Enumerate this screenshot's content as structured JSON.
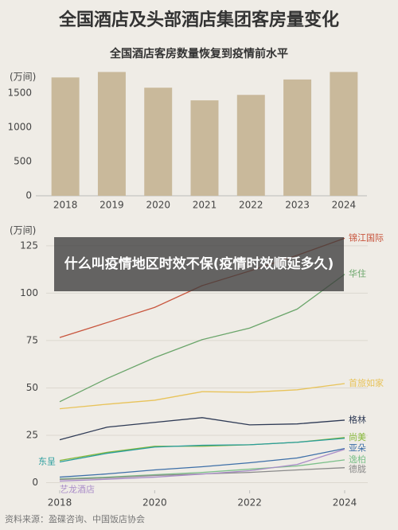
{
  "title": "全国酒店及头部酒店集团客房量变化",
  "overlay_text": "什么叫疫情地区时效不保(疫情时效顺延多久)",
  "source": "资料来源：盈碟咨询、中国饭店协会",
  "chart_data": [
    {
      "type": "bar",
      "title": "全国酒店客房数量恢复到疫情前水平",
      "y_label": "(万间)",
      "categories": [
        "2018",
        "2019",
        "2020",
        "2021",
        "2022",
        "2023",
        "2024"
      ],
      "values": [
        1730,
        1810,
        1580,
        1395,
        1475,
        1700,
        1810
      ],
      "color": "#c9b99b",
      "ylim": [
        0,
        1850
      ],
      "yticks": [
        0,
        500,
        1000,
        1500
      ],
      "grid": false
    },
    {
      "type": "line",
      "y_label": "(万间)",
      "x": [
        2018,
        2019,
        2020,
        2021,
        2022,
        2023,
        2024
      ],
      "xlim": [
        2018,
        2024
      ],
      "xticks": [
        2018,
        2020,
        2022,
        2024
      ],
      "ylim": [
        -4,
        130
      ],
      "yticks": [
        0,
        25,
        50,
        75,
        100,
        125
      ],
      "grid": true,
      "series": [
        {
          "name": "锦江国际",
          "color": "#c8553d",
          "values": [
            76.6,
            84.5,
            92.5,
            104,
            111.7,
            120,
            129
          ]
        },
        {
          "name": "华住",
          "color": "#6aa56a",
          "values": [
            42.7,
            55,
            66,
            75.5,
            81.6,
            91.6,
            110
          ]
        },
        {
          "name": "首旅如家",
          "color": "#e8c35a",
          "values": [
            39,
            41.4,
            43.5,
            48,
            47.7,
            49,
            52.3
          ]
        },
        {
          "name": "格林",
          "color": "#2e3a55",
          "values": [
            22.6,
            29.3,
            31.8,
            34.3,
            30.5,
            31,
            33
          ]
        },
        {
          "name": "尚美",
          "color": "#86b83a",
          "values": [
            11.7,
            16,
            19.2,
            19.2,
            20,
            21.3,
            23.8
          ]
        },
        {
          "name": "东呈",
          "color": "#2a9d9d",
          "label_position": "start",
          "values": [
            10.9,
            15.5,
            18.8,
            19.7,
            20,
            21.3,
            23.4
          ]
        },
        {
          "name": "亚朵",
          "color": "#3d6fa8",
          "values": [
            2.9,
            4.6,
            6.7,
            8.4,
            10.5,
            13,
            18
          ]
        },
        {
          "name": "逸柏",
          "color": "#7cc08a",
          "values": [
            2,
            2.9,
            4.2,
            5.4,
            7.1,
            8.8,
            12
          ]
        },
        {
          "name": "德胧",
          "color": "#8a8a8a",
          "values": [
            1.7,
            2.5,
            3.8,
            4.6,
            5.4,
            6.7,
            7.9
          ]
        },
        {
          "name": "艺龙酒店",
          "color": "#a98cc8",
          "label_position": "start",
          "values": [
            0.8,
            1.8,
            2.9,
            4.5,
            6.3,
            9.6,
            17.6
          ]
        }
      ]
    }
  ]
}
